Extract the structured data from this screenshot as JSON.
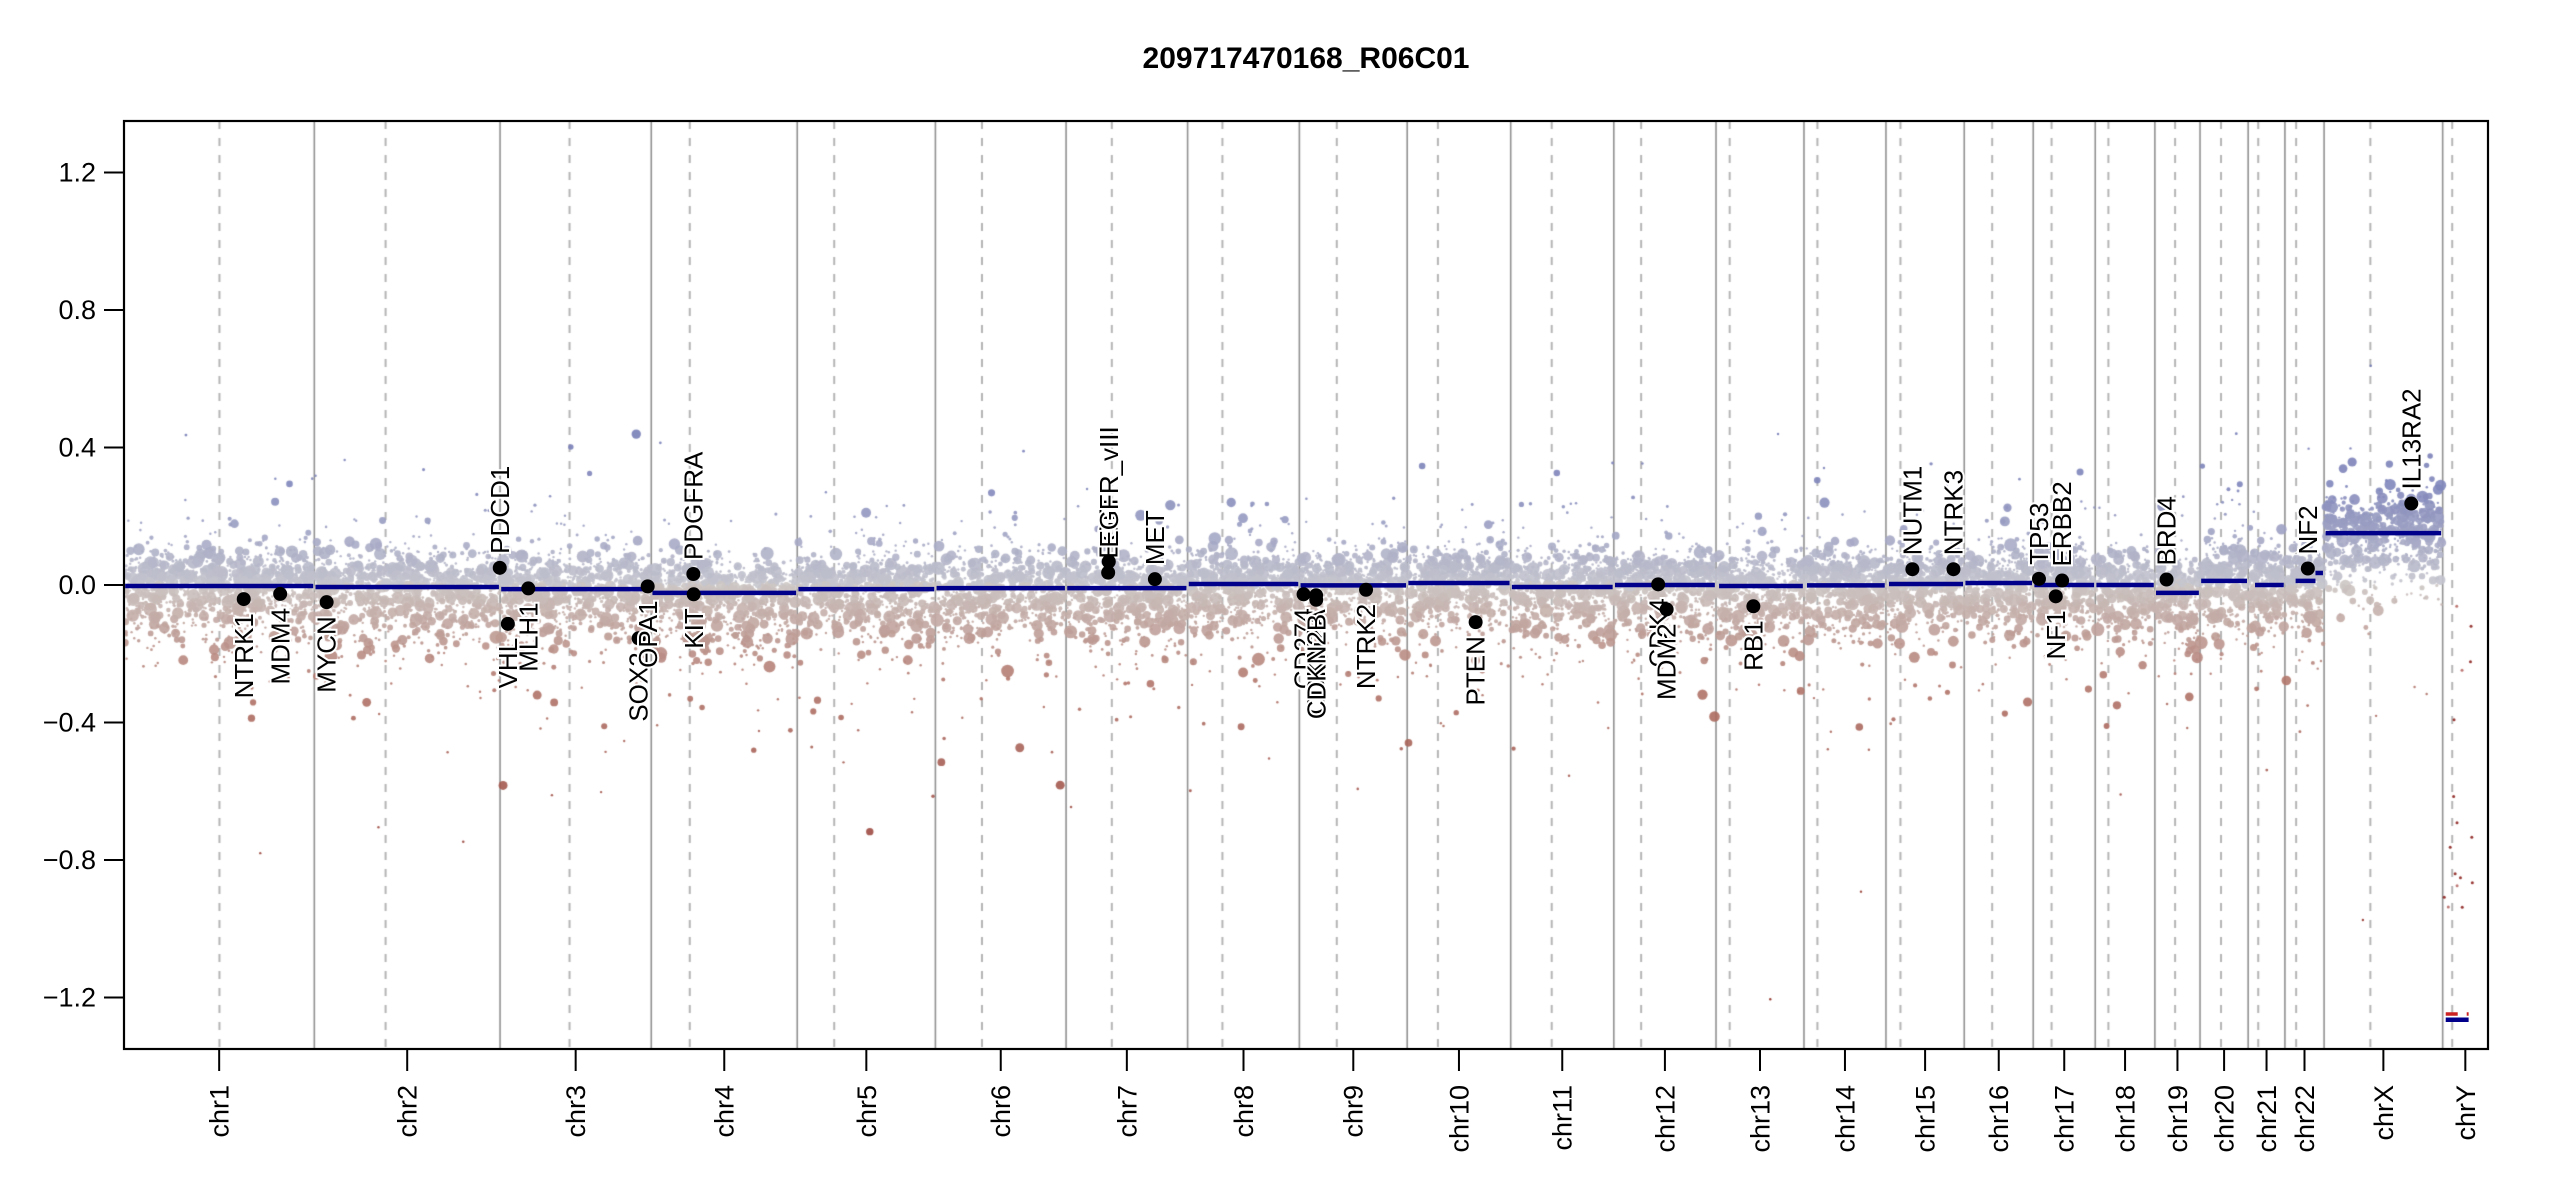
{
  "chart_data": {
    "type": "scatter",
    "title": "209717470168_R06C01",
    "subtitle": "",
    "xlabel": "",
    "ylabel": "",
    "ylim": [
      -1.35,
      1.35
    ],
    "grid": "vertical chromosome boundaries solid, centromeres dashed",
    "yticks": [
      {
        "v": 1.2,
        "label": "1.2"
      },
      {
        "v": 0.8,
        "label": "0.8"
      },
      {
        "v": 0.4,
        "label": "0.4"
      },
      {
        "v": 0.0,
        "label": "0.0"
      },
      {
        "v": -0.4,
        "label": "−0.4"
      },
      {
        "v": -0.8,
        "label": "−0.8"
      },
      {
        "v": -1.2,
        "label": "−1.2"
      }
    ],
    "colors": {
      "background": "#ffffff",
      "border": "#000000",
      "boundary_line": "#909090",
      "centromere_line": "#b5b5b5",
      "segment": "#00008B",
      "segment_red": "#cc2222",
      "gene_dot": "#000000",
      "pos_near": "#c6c6ce",
      "pos_far": "#8187bb",
      "pos_deep": "#666fae",
      "neg_near": "#ccc6c4",
      "neg_far": "#b2776c",
      "neg_deep": "#8d2a22",
      "chry_point": "#8d2420"
    },
    "scatter_style": {
      "seed": 1234,
      "points_per_mb": 4.3,
      "sd_pos": 0.05,
      "sd_neg": 0.078,
      "tail_frac": 0.13,
      "tail_mult": 2.3,
      "extreme_frac": 0.018,
      "extreme_mult": 4.8,
      "r_min": 1.2,
      "r_big": 5.4,
      "alpha": 0.9,
      "chry_points": 16
    },
    "chromosomes": [
      {
        "name": "chr1",
        "length_mb": 249.25,
        "centromere_mb": 125.0,
        "segments": [
          {
            "start_mb": 1.5,
            "end_mb": 247.8,
            "value": -0.003
          }
        ]
      },
      {
        "name": "chr2",
        "length_mb": 243.2,
        "centromere_mb": 93.3,
        "segments": [
          {
            "start_mb": 1.5,
            "end_mb": 241.7,
            "value": -0.006
          }
        ]
      },
      {
        "name": "chr3",
        "length_mb": 198.02,
        "centromere_mb": 91.0,
        "segments": [
          {
            "start_mb": 1.5,
            "end_mb": 196.5,
            "value": -0.012
          }
        ]
      },
      {
        "name": "chr4",
        "length_mb": 191.15,
        "centromere_mb": 50.4,
        "segments": [
          {
            "start_mb": 1.5,
            "end_mb": 189.7,
            "value": -0.023
          }
        ]
      },
      {
        "name": "chr5",
        "length_mb": 180.92,
        "centromere_mb": 48.4,
        "segments": [
          {
            "start_mb": 1.5,
            "end_mb": 179.4,
            "value": -0.012
          }
        ]
      },
      {
        "name": "chr6",
        "length_mb": 171.12,
        "centromere_mb": 61.0,
        "segments": [
          {
            "start_mb": 1.5,
            "end_mb": 169.6,
            "value": -0.009
          }
        ]
      },
      {
        "name": "chr7",
        "length_mb": 159.14,
        "centromere_mb": 59.9,
        "segments": [
          {
            "start_mb": 1.5,
            "end_mb": 157.6,
            "value": -0.009
          }
        ]
      },
      {
        "name": "chr8",
        "length_mb": 146.36,
        "centromere_mb": 45.6,
        "segments": [
          {
            "start_mb": 1.5,
            "end_mb": 144.9,
            "value": 0.003
          }
        ]
      },
      {
        "name": "chr9",
        "length_mb": 141.21,
        "centromere_mb": 49.0,
        "segments": [
          {
            "start_mb": 1.5,
            "end_mb": 139.7,
            "value": -0.001
          }
        ]
      },
      {
        "name": "chr10",
        "length_mb": 135.53,
        "centromere_mb": 40.2,
        "segments": [
          {
            "start_mb": 1.5,
            "end_mb": 134.0,
            "value": 0.006
          }
        ]
      },
      {
        "name": "chr11",
        "length_mb": 135.01,
        "centromere_mb": 53.7,
        "segments": [
          {
            "start_mb": 1.5,
            "end_mb": 133.5,
            "value": -0.006
          }
        ]
      },
      {
        "name": "chr12",
        "length_mb": 133.85,
        "centromere_mb": 35.8,
        "segments": [
          {
            "start_mb": 1.5,
            "end_mb": 132.3,
            "value": 0.0
          }
        ]
      },
      {
        "name": "chr13",
        "length_mb": 115.17,
        "centromere_mb": 17.9,
        "segments": [
          {
            "start_mb": 4.0,
            "end_mb": 113.7,
            "value": -0.003
          }
        ]
      },
      {
        "name": "chr14",
        "length_mb": 107.35,
        "centromere_mb": 17.6,
        "segments": [
          {
            "start_mb": 4.0,
            "end_mb": 105.8,
            "value": -0.001
          }
        ]
      },
      {
        "name": "chr15",
        "length_mb": 102.53,
        "centromere_mb": 19.0,
        "segments": [
          {
            "start_mb": 4.0,
            "end_mb": 101.0,
            "value": 0.003
          }
        ]
      },
      {
        "name": "chr16",
        "length_mb": 90.35,
        "centromere_mb": 36.6,
        "segments": [
          {
            "start_mb": 1.5,
            "end_mb": 88.8,
            "value": 0.006
          }
        ]
      },
      {
        "name": "chr17",
        "length_mb": 81.2,
        "centromere_mb": 24.0,
        "segments": [
          {
            "start_mb": 1.5,
            "end_mb": 79.7,
            "value": 0.0
          }
        ]
      },
      {
        "name": "chr18",
        "length_mb": 78.08,
        "centromere_mb": 17.2,
        "segments": [
          {
            "start_mb": 1.5,
            "end_mb": 76.6,
            "value": 0.0
          }
        ]
      },
      {
        "name": "chr19",
        "length_mb": 59.13,
        "centromere_mb": 26.5,
        "segments": [
          {
            "start_mb": 1.5,
            "end_mb": 57.6,
            "value": -0.023
          }
        ]
      },
      {
        "name": "chr20",
        "length_mb": 63.03,
        "centromere_mb": 27.5,
        "segments": [
          {
            "start_mb": 1.5,
            "end_mb": 61.5,
            "value": 0.012
          }
        ]
      },
      {
        "name": "chr21",
        "length_mb": 48.13,
        "centromere_mb": 13.2,
        "segments": [
          {
            "start_mb": 9.0,
            "end_mb": 46.6,
            "value": 0.0
          }
        ]
      },
      {
        "name": "chr22",
        "length_mb": 51.3,
        "centromere_mb": 14.7,
        "segments": [
          {
            "start_mb": 14.0,
            "end_mb": 40.0,
            "value": 0.012
          },
          {
            "start_mb": 40.0,
            "end_mb": 49.8,
            "value": 0.035
          }
        ]
      },
      {
        "name": "chrX",
        "length_mb": 155.27,
        "centromere_mb": 60.6,
        "segments": [
          {
            "start_mb": 2.0,
            "end_mb": 153.3,
            "value": 0.151
          }
        ],
        "scatter_offset": 0.151
      },
      {
        "name": "chrY",
        "length_mb": 59.37,
        "centromere_mb": 12.5,
        "sparse": true,
        "segments": [
          {
            "start_mb": 4.0,
            "end_mb": 34.0,
            "value": -1.265
          },
          {
            "start_mb": 4.0,
            "end_mb": 34.0,
            "value": -1.248,
            "style": "red-dashed"
          }
        ]
      }
    ],
    "genes": [
      {
        "name": "NTRK1",
        "chrom": "chr1",
        "pos_mb": 156.8,
        "value": -0.041,
        "label_side": "below"
      },
      {
        "name": "MDM4",
        "chrom": "chr1",
        "pos_mb": 204.5,
        "value": -0.026,
        "label_side": "below"
      },
      {
        "name": "MYCN",
        "chrom": "chr2",
        "pos_mb": 16.1,
        "value": -0.05,
        "label_side": "below"
      },
      {
        "name": "PDCD1",
        "chrom": "chr2",
        "pos_mb": 242.8,
        "value": 0.05,
        "label_side": "above"
      },
      {
        "name": "VHL",
        "chrom": "chr3",
        "pos_mb": 10.2,
        "value": -0.113,
        "label_side": "below"
      },
      {
        "name": "MLH1",
        "chrom": "chr3",
        "pos_mb": 37.0,
        "value": -0.01,
        "label_side": "below"
      },
      {
        "name": "SOX2",
        "chrom": "chr3",
        "pos_mb": 181.4,
        "value": -0.155,
        "label_side": "below"
      },
      {
        "name": "OPA1",
        "chrom": "chr3",
        "pos_mb": 193.3,
        "value": -0.004,
        "label_side": "below"
      },
      {
        "name": "PDGFRA",
        "chrom": "chr4",
        "pos_mb": 55.1,
        "value": 0.032,
        "label_side": "above"
      },
      {
        "name": "KIT",
        "chrom": "chr4",
        "pos_mb": 55.5,
        "value": -0.027,
        "label_side": "below"
      },
      {
        "name": "EGFR",
        "chrom": "chr7",
        "pos_mb": 55.1,
        "value": 0.036,
        "label_side": "above"
      },
      {
        "name": "EGFR_vIII",
        "chrom": "chr7",
        "pos_mb": 55.9,
        "value": 0.068,
        "label_side": "above"
      },
      {
        "name": "MET",
        "chrom": "chr7",
        "pos_mb": 116.3,
        "value": 0.017,
        "label_side": "above"
      },
      {
        "name": "CD274",
        "chrom": "chr9",
        "pos_mb": 5.5,
        "value": -0.027,
        "label_side": "below"
      },
      {
        "name": "CDKN2A",
        "chrom": "chr9",
        "pos_mb": 21.9,
        "value": -0.03,
        "label_side": "below"
      },
      {
        "name": "CDKN2B",
        "chrom": "chr9",
        "pos_mb": 22.1,
        "value": -0.043,
        "label_side": "below"
      },
      {
        "name": "NTRK2",
        "chrom": "chr9",
        "pos_mb": 87.3,
        "value": -0.014,
        "label_side": "below"
      },
      {
        "name": "PTEN",
        "chrom": "chr10",
        "pos_mb": 89.6,
        "value": -0.108,
        "label_side": "below"
      },
      {
        "name": "CDK4",
        "chrom": "chr12",
        "pos_mb": 58.1,
        "value": 0.002,
        "label_side": "below"
      },
      {
        "name": "MDM2",
        "chrom": "chr12",
        "pos_mb": 69.2,
        "value": -0.071,
        "label_side": "below"
      },
      {
        "name": "RB1",
        "chrom": "chr13",
        "pos_mb": 48.9,
        "value": -0.062,
        "label_side": "below"
      },
      {
        "name": "NUTM1",
        "chrom": "chr15",
        "pos_mb": 34.6,
        "value": 0.046,
        "label_side": "above"
      },
      {
        "name": "NTRK3",
        "chrom": "chr15",
        "pos_mb": 88.4,
        "value": 0.046,
        "label_side": "above"
      },
      {
        "name": "TP53",
        "chrom": "chr17",
        "pos_mb": 7.5,
        "value": 0.018,
        "label_side": "above"
      },
      {
        "name": "NF1",
        "chrom": "chr17",
        "pos_mb": 29.5,
        "value": -0.033,
        "label_side": "below"
      },
      {
        "name": "ERBB2",
        "chrom": "chr17",
        "pos_mb": 37.8,
        "value": 0.013,
        "label_side": "above"
      },
      {
        "name": "BRD4",
        "chrom": "chr19",
        "pos_mb": 15.3,
        "value": 0.016,
        "label_side": "above"
      },
      {
        "name": "NF2",
        "chrom": "chr22",
        "pos_mb": 30.0,
        "value": 0.048,
        "label_side": "above"
      },
      {
        "name": "IL13RA2",
        "chrom": "chrX",
        "pos_mb": 114.2,
        "value": 0.237,
        "label_side": "above"
      }
    ]
  }
}
